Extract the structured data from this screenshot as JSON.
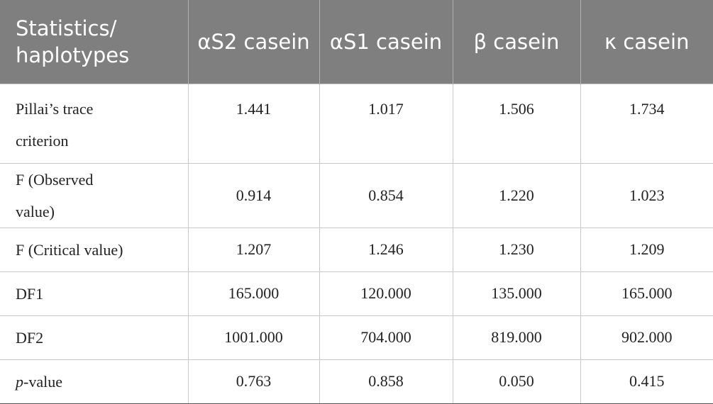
{
  "table": {
    "header": [
      "Statistics/ haplotypes",
      "αS2 casein",
      "αS1 casein",
      "β casein",
      "κ casein"
    ],
    "rows": [
      {
        "label": [
          "Pillai’s trace criterion"
        ],
        "values": [
          "1.441",
          "1.017",
          "1.506",
          "1.734"
        ]
      },
      {
        "label": [
          "F (Observed value)"
        ],
        "values": [
          "0.914",
          "0.854",
          "1.220",
          "1.023"
        ]
      },
      {
        "label": [
          "F (Critical value)"
        ],
        "values": [
          "1.207",
          "1.246",
          "1.230",
          "1.209"
        ]
      },
      {
        "label": [
          "DF1"
        ],
        "values": [
          "165.000",
          "120.000",
          "135.000",
          "165.000"
        ]
      },
      {
        "label": [
          "DF2"
        ],
        "values": [
          "1001.000",
          "704.000",
          "819.000",
          "902.000"
        ]
      },
      {
        "label": [
          "p",
          "-value"
        ],
        "values": [
          "0.763",
          "0.858",
          "0.050",
          "0.415"
        ]
      }
    ]
  }
}
